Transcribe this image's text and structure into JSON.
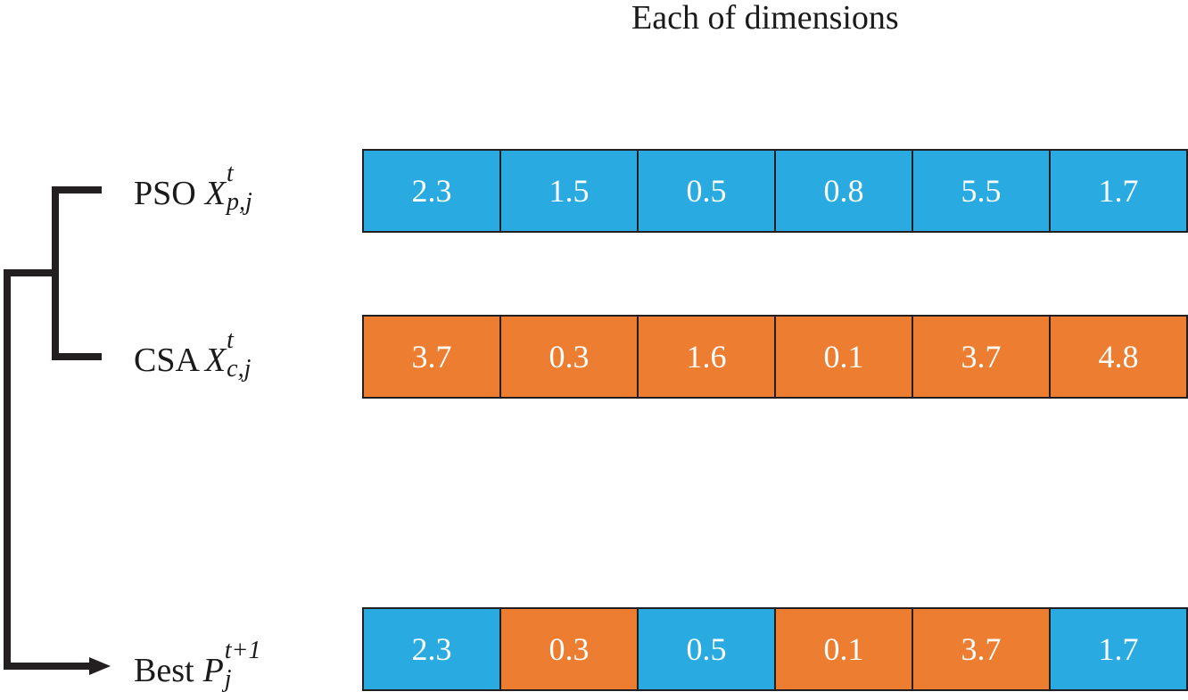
{
  "title": "Each of dimensions",
  "colors": {
    "pso": "#29abe2",
    "csa": "#ed7d31",
    "line": "#231f20"
  },
  "rows": [
    {
      "name": "PSO",
      "symbol": "X",
      "superscript": "t",
      "subscript": "p,j",
      "cells": [
        {
          "value": "2.3",
          "source": "pso"
        },
        {
          "value": "1.5",
          "source": "pso"
        },
        {
          "value": "0.5",
          "source": "pso"
        },
        {
          "value": "0.8",
          "source": "pso"
        },
        {
          "value": "5.5",
          "source": "pso"
        },
        {
          "value": "1.7",
          "source": "pso"
        }
      ]
    },
    {
      "name": "CSA",
      "symbol": "X",
      "superscript": "t",
      "subscript": "c,j",
      "cells": [
        {
          "value": "3.7",
          "source": "csa"
        },
        {
          "value": "0.3",
          "source": "csa"
        },
        {
          "value": "1.6",
          "source": "csa"
        },
        {
          "value": "0.1",
          "source": "csa"
        },
        {
          "value": "3.7",
          "source": "csa"
        },
        {
          "value": "4.8",
          "source": "csa"
        }
      ]
    },
    {
      "name": "Best",
      "symbol": "P",
      "superscript": "t+1",
      "subscript": "j",
      "cells": [
        {
          "value": "2.3",
          "source": "pso"
        },
        {
          "value": "0.3",
          "source": "csa"
        },
        {
          "value": "0.5",
          "source": "pso"
        },
        {
          "value": "0.1",
          "source": "csa"
        },
        {
          "value": "3.7",
          "source": "csa"
        },
        {
          "value": "1.7",
          "source": "pso"
        }
      ]
    }
  ]
}
